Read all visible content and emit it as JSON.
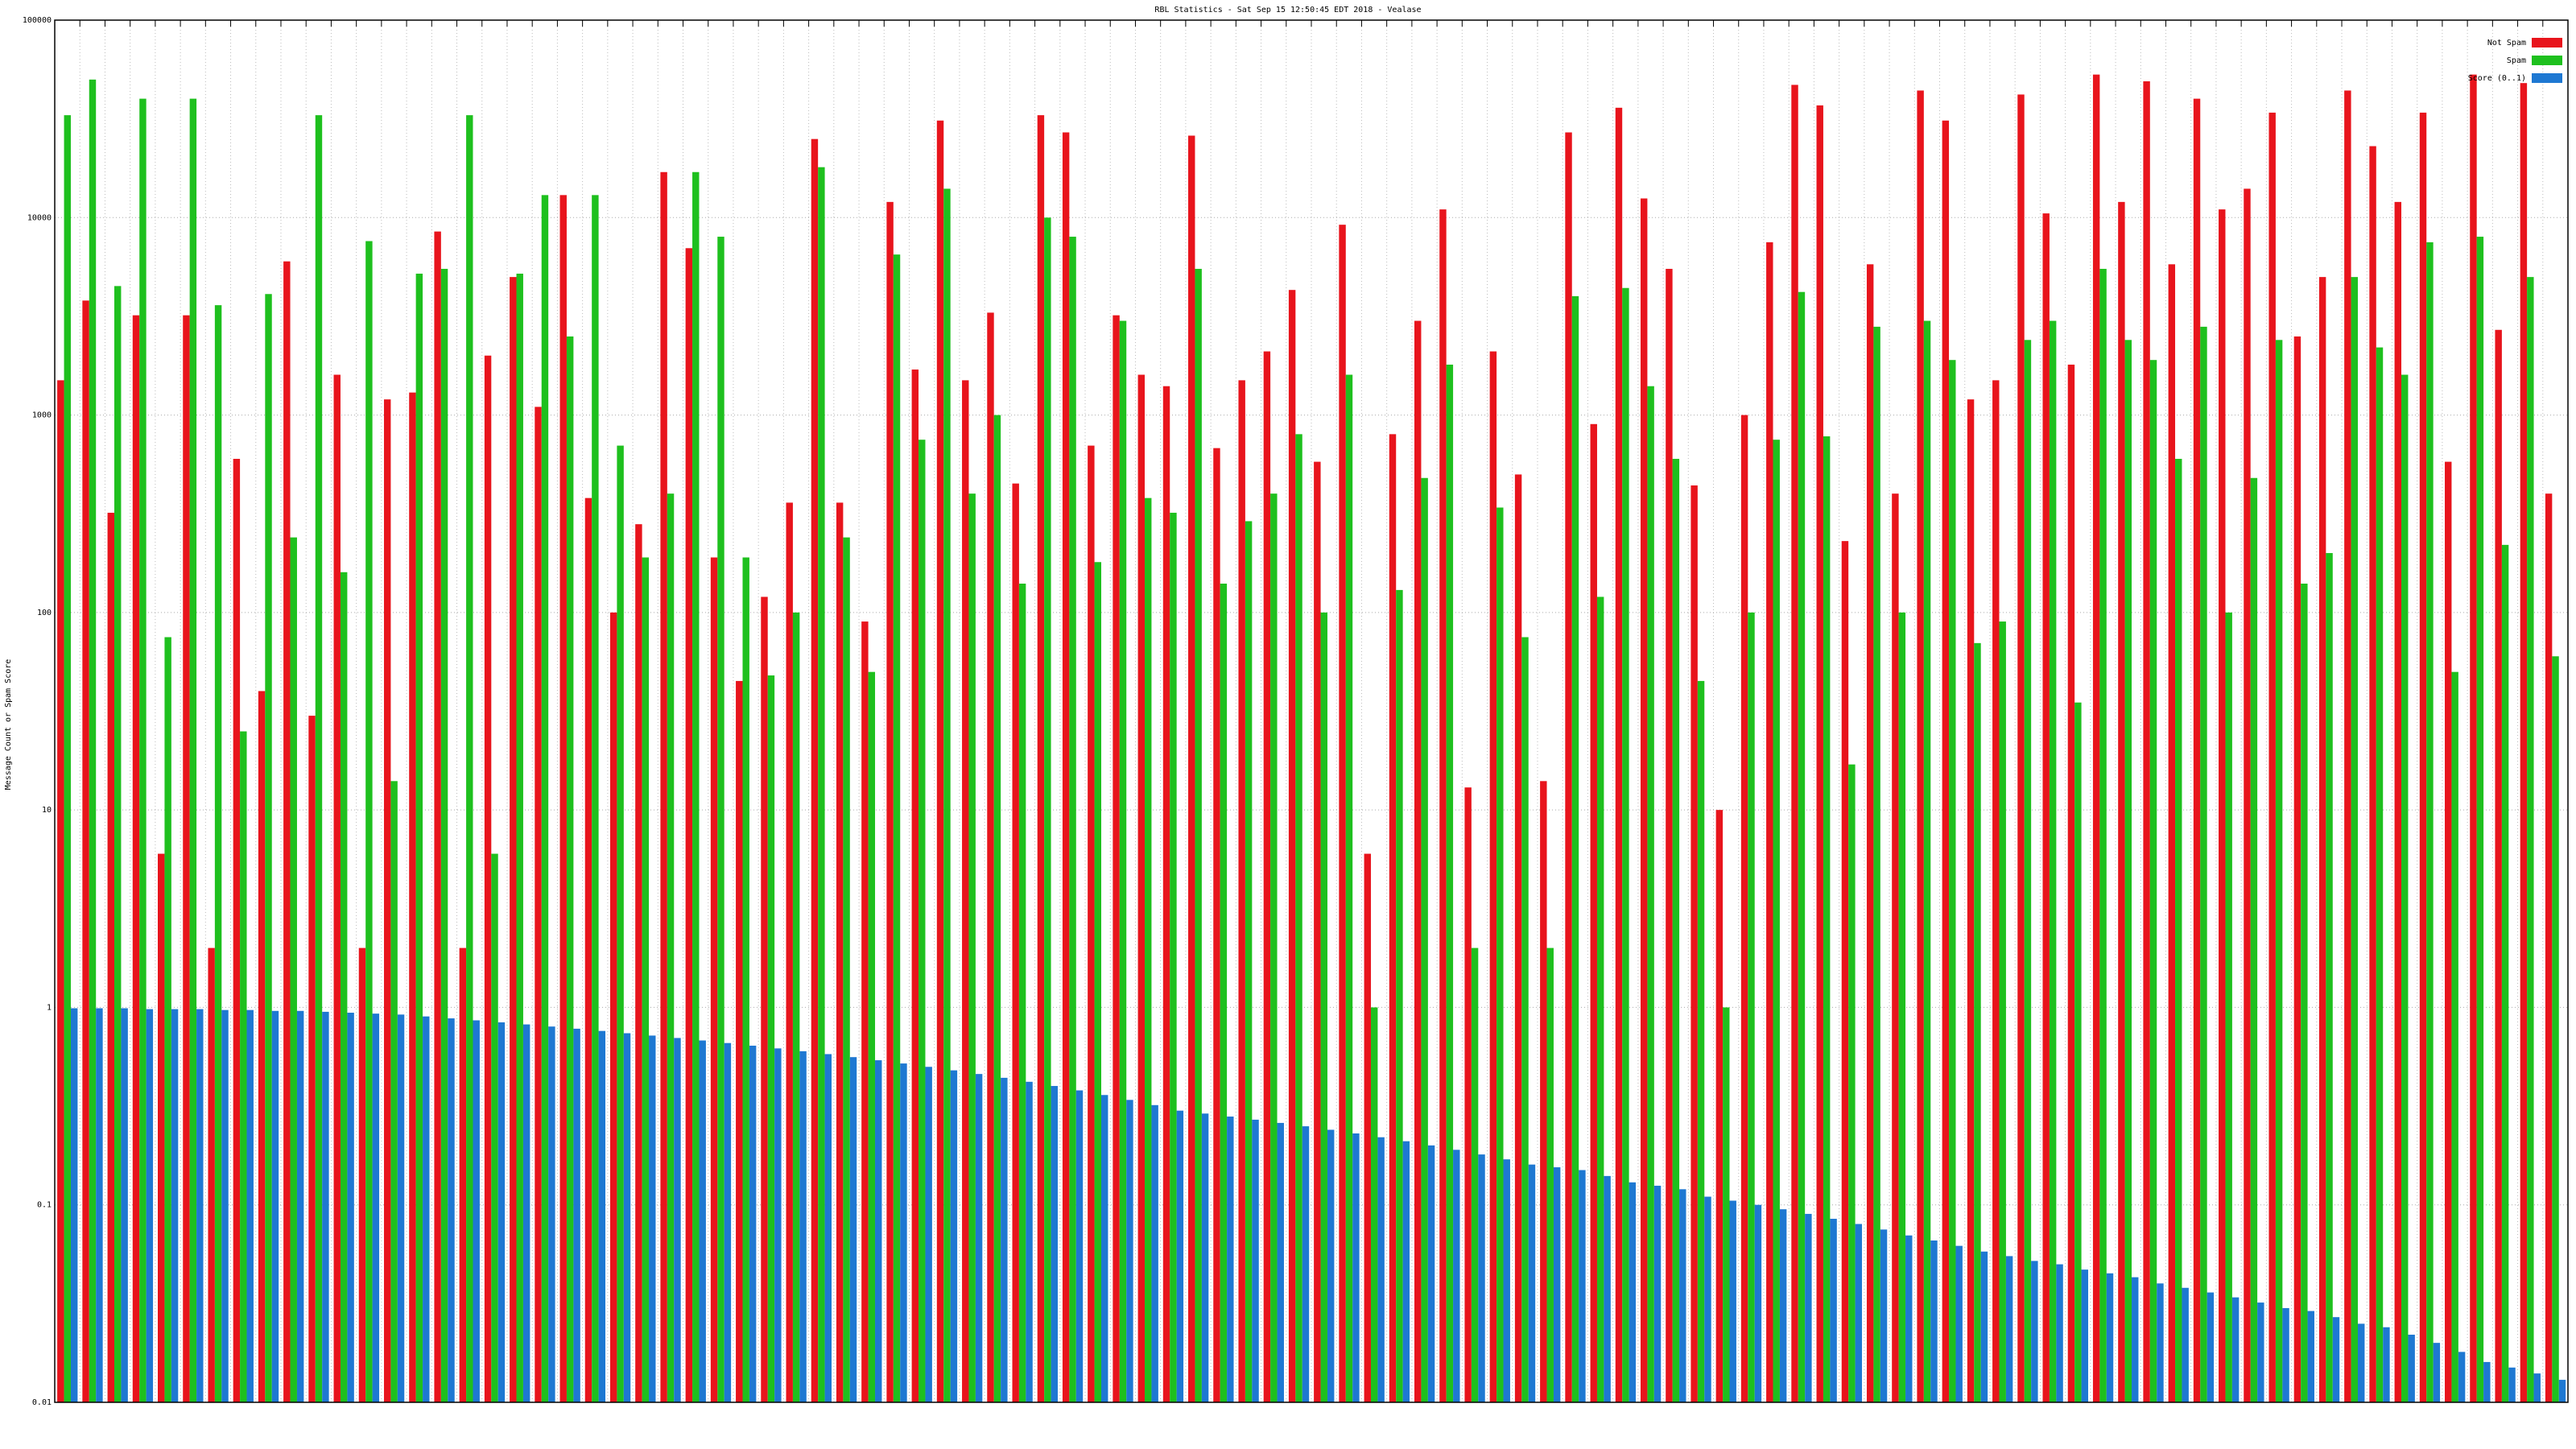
{
  "chart_data": {
    "type": "grouped-bar",
    "title": "RBL Statistics - Sat Sep 15 12:50:45 EDT 2018 - Vealase",
    "y_label": "Message Count or Spam Score",
    "log_scale": true,
    "grid": true,
    "legend": "upper right",
    "ylim": [
      0.01,
      100000
    ],
    "yticks": [
      0.01,
      0.1,
      1,
      10,
      100,
      1000,
      10000,
      100000
    ],
    "categories": [
      null,
      null,
      null,
      null,
      null,
      null,
      null,
      null,
      null,
      null,
      null,
      null,
      null,
      null,
      null,
      null,
      null,
      null,
      null,
      null,
      null,
      null,
      null,
      null,
      null,
      null,
      null,
      null,
      null,
      null,
      null,
      null,
      null,
      null,
      null,
      null,
      null,
      null,
      null,
      null,
      null,
      null,
      null,
      null,
      null,
      null,
      null,
      null,
      null,
      null,
      null,
      null,
      null,
      null,
      null,
      null,
      null,
      null,
      null,
      null,
      null,
      null,
      null,
      null,
      null,
      null,
      null,
      null,
      null,
      null,
      null,
      null,
      null,
      null,
      null,
      null,
      null,
      null,
      null,
      null,
      null,
      null,
      null,
      null,
      null,
      null,
      null,
      null,
      null,
      null,
      null,
      null,
      null,
      null,
      null,
      null,
      null,
      null,
      null,
      null
    ],
    "series": [
      {
        "name": "Not Spam",
        "color": "#e8141c",
        "values": [
          1500,
          3800,
          320,
          3200,
          6,
          3200,
          2,
          600,
          40,
          6000,
          30,
          1600,
          2,
          1200,
          1300,
          8500,
          2,
          2000,
          5000,
          1100,
          13000,
          380,
          100,
          280,
          17000,
          7000,
          190,
          45,
          120,
          360,
          25000,
          360,
          90,
          12000,
          1700,
          31000,
          1500,
          3300,
          450,
          33000,
          27000,
          700,
          3200,
          1600,
          1400,
          26000,
          680,
          1500,
          2100,
          4300,
          580,
          9200,
          6,
          800,
          3000,
          11000,
          13,
          2100,
          500,
          14,
          27000,
          900,
          36000,
          12500,
          5500,
          440,
          10,
          1000,
          7500,
          47000,
          37000,
          230,
          5800,
          400,
          44000,
          31000,
          1200,
          1500,
          42000,
          10500,
          1800,
          53000,
          12000,
          49000,
          5800,
          40000,
          11000,
          14000,
          34000,
          2500,
          5000,
          44000,
          23000,
          12000,
          34000,
          580,
          53000,
          2700,
          48000,
          400
        ]
      },
      {
        "name": "Spam",
        "color": "#1ec01e",
        "values": [
          33000,
          50000,
          4500,
          40000,
          75,
          40000,
          3600,
          25,
          4100,
          240,
          33000,
          160,
          7600,
          14,
          5200,
          5500,
          33000,
          6,
          5200,
          13000,
          2500,
          13000,
          700,
          190,
          400,
          17000,
          8000,
          190,
          48,
          100,
          18000,
          240,
          50,
          6500,
          750,
          14000,
          400,
          1000,
          140,
          10000,
          8000,
          180,
          3000,
          380,
          320,
          5500,
          140,
          290,
          400,
          800,
          100,
          1600,
          1,
          130,
          480,
          1800,
          2,
          340,
          75,
          2,
          4000,
          120,
          4400,
          1400,
          600,
          45,
          1,
          100,
          750,
          4200,
          780,
          17,
          2800,
          100,
          3000,
          1900,
          70,
          90,
          2400,
          3000,
          35,
          5500,
          2400,
          1900,
          600,
          2800,
          100,
          480,
          2400,
          140,
          200,
          5000,
          2200,
          1600,
          7500,
          50,
          8000,
          220,
          5000,
          60
        ]
      },
      {
        "name": "Score (0..1)",
        "color": "#1e78d2",
        "values": [
          0.99,
          0.99,
          0.99,
          0.98,
          0.98,
          0.98,
          0.97,
          0.97,
          0.96,
          0.96,
          0.95,
          0.94,
          0.93,
          0.92,
          0.9,
          0.88,
          0.86,
          0.84,
          0.82,
          0.8,
          0.78,
          0.76,
          0.74,
          0.72,
          0.7,
          0.68,
          0.66,
          0.64,
          0.62,
          0.6,
          0.58,
          0.56,
          0.54,
          0.52,
          0.5,
          0.48,
          0.46,
          0.44,
          0.42,
          0.4,
          0.38,
          0.36,
          0.34,
          0.32,
          0.3,
          0.29,
          0.28,
          0.27,
          0.26,
          0.25,
          0.24,
          0.23,
          0.22,
          0.21,
          0.2,
          0.19,
          0.18,
          0.17,
          0.16,
          0.155,
          0.15,
          0.14,
          0.13,
          0.125,
          0.12,
          0.11,
          0.105,
          0.1,
          0.095,
          0.09,
          0.085,
          0.08,
          0.075,
          0.07,
          0.066,
          0.062,
          0.058,
          0.055,
          0.052,
          0.05,
          0.047,
          0.045,
          0.043,
          0.04,
          0.038,
          0.036,
          0.034,
          0.032,
          0.03,
          0.029,
          0.027,
          0.025,
          0.024,
          0.022,
          0.02,
          0.018,
          0.016,
          0.015,
          0.014,
          0.013
        ]
      }
    ]
  }
}
